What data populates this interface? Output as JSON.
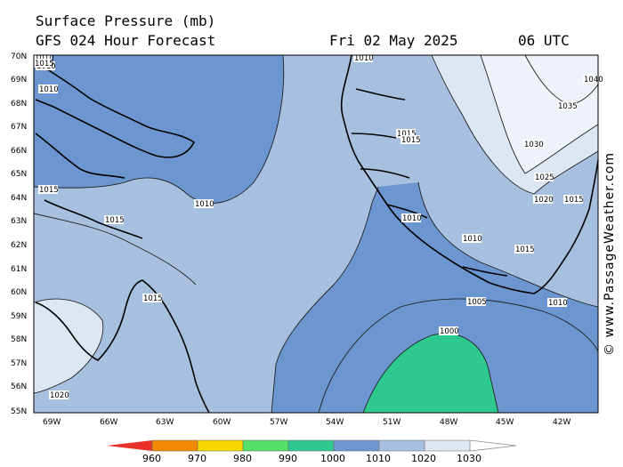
{
  "header": {
    "title": "Surface Pressure (mb)",
    "model": "GFS 024 Hour Forecast",
    "date": "Fri 02 May 2025",
    "time": "06 UTC"
  },
  "watermark": "© www.PassageWeather.com",
  "axes": {
    "lat_labels": [
      "70N",
      "69N",
      "68N",
      "67N",
      "66N",
      "65N",
      "64N",
      "63N",
      "62N",
      "61N",
      "60N",
      "59N",
      "58N",
      "57N",
      "56N",
      "55N"
    ],
    "lon_labels": [
      "69W",
      "66W",
      "63W",
      "60W",
      "57W",
      "54W",
      "51W",
      "48W",
      "45W",
      "42W"
    ]
  },
  "contour_labels": [
    "1010",
    "1010",
    "1010",
    "1010",
    "1015",
    "1015",
    "1015",
    "1015",
    "1015",
    "1015",
    "1010",
    "1010",
    "1010",
    "1005",
    "1000",
    "1030",
    "1035",
    "1025",
    "1020",
    "1015",
    "1040",
    "1020",
    "1010",
    "1015"
  ],
  "legend": {
    "values": [
      "960",
      "970",
      "980",
      "990",
      "1000",
      "1010",
      "1020",
      "1030"
    ],
    "colors": [
      "#e8312a",
      "#f08a00",
      "#f5d800",
      "#55e06a",
      "#2ec98e",
      "#6b96cf",
      "#a7c0df",
      "#dde6f3",
      "#ffffff"
    ]
  },
  "fills": {
    "pressure_1005_1010": "#6b96cf",
    "pressure_1010_1020": "#a7c0df",
    "pressure_1020_1030": "#dde6f3",
    "pressure_995_1000": "#2ec98e"
  }
}
